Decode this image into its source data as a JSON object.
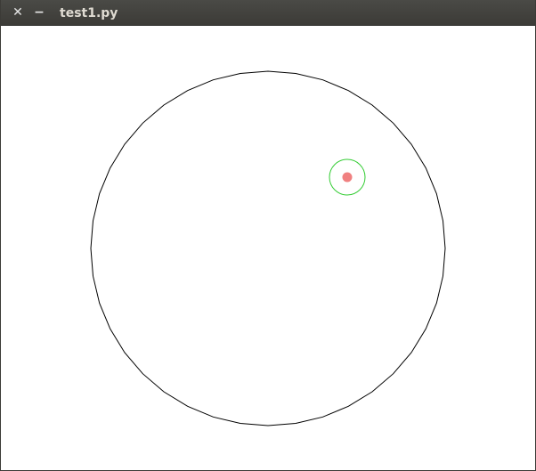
{
  "window": {
    "title": "test1.py",
    "close_icon": "close-icon",
    "minimize_icon": "minimize-icon"
  },
  "colors": {
    "big_circle_stroke": "#000000",
    "target_ring_stroke": "#33cc33",
    "dot_fill": "#f08080",
    "titlebar": "#3c3b37",
    "title_text": "#dfdbd2"
  }
}
